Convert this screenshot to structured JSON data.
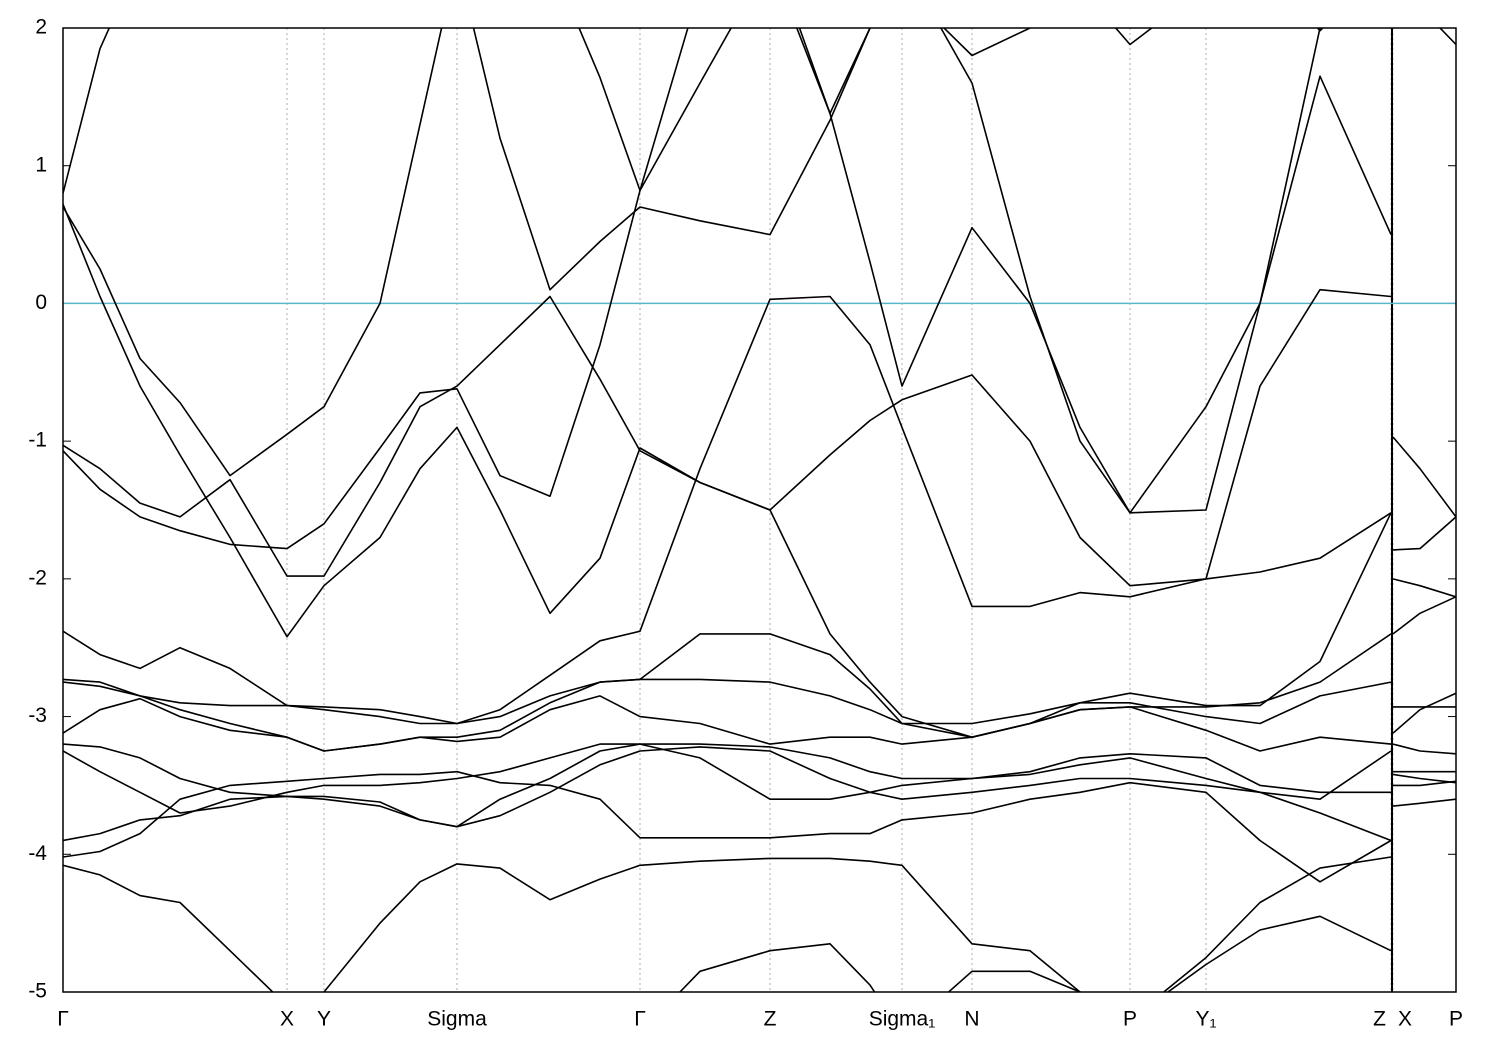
{
  "chart_data": {
    "type": "line",
    "x": [
      0,
      0.37,
      0.77,
      1.17,
      1.67,
      2.24,
      2.61,
      3.17,
      3.57,
      3.94,
      4.37,
      4.87,
      5.37,
      5.77,
      6.37,
      7.07,
      7.67,
      8.07,
      8.39,
      9.09,
      9.67,
      10.17,
      10.67,
      11.43,
      11.97,
      12.57,
      13.28,
      13.29,
      13.3,
      13.57,
      13.93
    ],
    "xlim": [
      0,
      13.93
    ],
    "ylim": [
      -5,
      2
    ],
    "yticks": [
      2,
      1,
      0,
      -1,
      -2,
      -3,
      -4,
      -5
    ],
    "xticks": [
      {
        "value": 0,
        "label": "Γ"
      },
      {
        "value": 2.24,
        "label": "X"
      },
      {
        "value": 2.61,
        "label": "Y"
      },
      {
        "value": 3.94,
        "label": "Sigma"
      },
      {
        "value": 5.77,
        "label": "Γ"
      },
      {
        "value": 7.07,
        "label": "Z"
      },
      {
        "value": 8.39,
        "label": "Sigma₁"
      },
      {
        "value": 9.09,
        "label": "N"
      },
      {
        "value": 10.67,
        "label": "P"
      },
      {
        "value": 11.43,
        "label": "Y₁"
      },
      {
        "value": 13.28,
        "label": "Z"
      },
      {
        "value": 13.3,
        "label": "X"
      },
      {
        "value": 13.93,
        "label": "P"
      }
    ],
    "grid": true,
    "reference_line": {
      "y": 0,
      "color": "#5bb6cc"
    },
    "series": [
      {
        "color": "#000000",
        "values": [
          0.8,
          1.85,
          2.5,
          2.5,
          2.5,
          2.5,
          2.5,
          2.5,
          2.5,
          2.5,
          2.5,
          2.5,
          1.64,
          0.82,
          1.6,
          2.5,
          1.38,
          2.0,
          2.5,
          1.6,
          0.05,
          -1.0,
          -1.52,
          -1.5,
          0.0,
          1.65,
          0.5,
          null,
          2.5,
          2.15,
          1.88
        ]
      },
      {
        "color": "#000000",
        "values": [
          0.72,
          0.05,
          -0.6,
          -1.1,
          -1.7,
          -2.42,
          -2.05,
          -1.7,
          -1.2,
          -0.9,
          -1.5,
          -2.25,
          -1.85,
          -1.05,
          -1.3,
          -1.5,
          -1.1,
          -0.85,
          -0.7,
          -0.52,
          -1.0,
          -1.7,
          -2.05,
          -2.0,
          -0.6,
          0.1,
          0.05,
          null,
          -3.12,
          -2.95,
          -2.83
        ]
      },
      {
        "color": "#000000",
        "values": [
          0.7,
          0.25,
          -0.4,
          -0.72,
          -1.25,
          -0.95,
          -0.75,
          0.0,
          1.3,
          2.5,
          1.2,
          0.1,
          0.45,
          0.7,
          0.6,
          0.5,
          1.33,
          2.0,
          2.3,
          1.8,
          2.0,
          2.3,
          1.88,
          2.3,
          2.5,
          1.98,
          2.5,
          null,
          -0.97,
          -1.2,
          -1.55
        ]
      },
      {
        "color": "#000000",
        "values": [
          -1.03,
          -1.2,
          -1.45,
          -1.55,
          -1.28,
          -1.98,
          -1.98,
          -1.3,
          -0.75,
          -0.6,
          -0.3,
          0.05,
          -0.55,
          -1.07,
          -1.3,
          -1.5,
          -2.4,
          -2.75,
          -3.0,
          -3.15,
          -3.05,
          -2.9,
          -2.83,
          -2.92,
          -2.92,
          -2.6,
          -1.52,
          null,
          -1.79,
          -1.78,
          -1.55
        ]
      },
      {
        "color": "#000000",
        "values": [
          -1.07,
          -1.35,
          -1.55,
          -1.65,
          -1.75,
          -1.78,
          -1.6,
          -1.05,
          -0.65,
          -0.62,
          -1.25,
          -1.4,
          -0.3,
          0.82,
          2.3,
          2.6,
          1.38,
          0.3,
          -0.6,
          0.55,
          0.0,
          -0.9,
          -1.52,
          -0.75,
          0.0,
          2.0,
          2.5,
          null,
          -2.0,
          -2.05,
          -2.13
        ]
      },
      {
        "color": "#000000",
        "values": [
          -2.38,
          -2.55,
          -2.65,
          -2.5,
          -2.65,
          -2.92,
          -2.95,
          -3.0,
          -3.05,
          -3.05,
          -2.95,
          -2.7,
          -2.45,
          -2.38,
          -1.2,
          0.03,
          0.05,
          -0.3,
          -0.9,
          -2.2,
          -2.2,
          -2.1,
          -2.13,
          -2.0,
          -1.95,
          -1.85,
          -1.52,
          null,
          -2.4,
          -2.25,
          -2.13
        ]
      },
      {
        "color": "#000000",
        "values": [
          -2.73,
          -2.75,
          -2.85,
          -2.95,
          -3.05,
          -3.15,
          -3.25,
          -3.2,
          -3.15,
          -3.15,
          -3.1,
          -2.9,
          -2.75,
          -2.73,
          -2.4,
          -2.4,
          -2.55,
          -2.8,
          -3.05,
          -3.15,
          -3.05,
          -2.95,
          -2.93,
          -2.93,
          -2.9,
          -2.75,
          -2.4,
          null,
          -2.93,
          -2.93,
          -2.93
        ]
      },
      {
        "color": "#000000",
        "values": [
          -2.75,
          -2.78,
          -2.85,
          -2.9,
          -2.92,
          -2.92,
          -2.93,
          -2.95,
          -3.0,
          -3.05,
          -3.0,
          -2.85,
          -2.75,
          -2.73,
          -2.73,
          -2.75,
          -2.85,
          -2.95,
          -3.05,
          -3.05,
          -2.98,
          -2.9,
          -2.9,
          -3.0,
          -3.05,
          -2.85,
          -2.75,
          null,
          -3.2,
          -3.25,
          -3.27
        ]
      },
      {
        "color": "#000000",
        "values": [
          -3.12,
          -2.95,
          -2.87,
          -3.0,
          -3.1,
          -3.15,
          -3.25,
          -3.2,
          -3.15,
          -3.18,
          -3.15,
          -2.95,
          -2.85,
          -3.0,
          -3.05,
          -3.2,
          -3.15,
          -3.15,
          -3.2,
          -3.15,
          -3.05,
          -2.95,
          -2.93,
          -3.1,
          -3.25,
          -3.15,
          -3.2,
          null,
          -3.4,
          -3.4,
          -3.4
        ]
      },
      {
        "color": "#000000",
        "values": [
          -3.2,
          -3.22,
          -3.3,
          -3.45,
          -3.55,
          -3.58,
          -3.6,
          -3.65,
          -3.75,
          -3.8,
          -3.6,
          -3.45,
          -3.25,
          -3.2,
          -3.3,
          -3.6,
          -3.6,
          -3.55,
          -3.5,
          -3.45,
          -3.4,
          -3.3,
          -3.27,
          -3.3,
          -3.5,
          -3.55,
          -3.55,
          null,
          -3.42,
          -3.45,
          -3.48
        ]
      },
      {
        "color": "#000000",
        "values": [
          -3.25,
          -3.4,
          -3.55,
          -3.7,
          -3.65,
          -3.55,
          -3.5,
          -3.5,
          -3.48,
          -3.45,
          -3.4,
          -3.3,
          -3.2,
          -3.2,
          -3.2,
          -3.22,
          -3.3,
          -3.4,
          -3.45,
          -3.45,
          -3.42,
          -3.35,
          -3.3,
          -3.45,
          -3.55,
          -3.6,
          -3.25,
          null,
          -3.5,
          -3.5,
          -3.47
        ]
      },
      {
        "color": "#000000",
        "values": [
          -3.9,
          -3.85,
          -3.75,
          -3.72,
          -3.6,
          -3.58,
          -3.58,
          -3.62,
          -3.75,
          -3.8,
          -3.72,
          -3.55,
          -3.35,
          -3.25,
          -3.22,
          -3.25,
          -3.45,
          -3.55,
          -3.6,
          -3.55,
          -3.5,
          -3.45,
          -3.45,
          -3.5,
          -3.55,
          -3.7,
          -3.9,
          null,
          -3.65,
          -3.63,
          -3.6
        ]
      },
      {
        "color": "#000000",
        "values": [
          -4.02,
          -3.98,
          -3.85,
          -3.6,
          -3.5,
          -3.47,
          -3.45,
          -3.42,
          -3.42,
          -3.4,
          -3.48,
          -3.5,
          -3.6,
          -3.88,
          -3.88,
          -3.88,
          -3.85,
          -3.85,
          -3.75,
          -3.7,
          -3.6,
          -3.55,
          -3.48,
          -3.55,
          -3.9,
          -4.2,
          -3.9,
          null,
          null,
          null,
          null
        ]
      },
      {
        "color": "#000000",
        "values": [
          -4.08,
          -4.15,
          -4.3,
          -4.35,
          -4.7,
          -5.1,
          -5.0,
          -4.5,
          -4.2,
          -4.07,
          -4.1,
          -4.33,
          -4.18,
          -4.08,
          -4.05,
          -4.03,
          -4.03,
          -4.05,
          -4.08,
          -4.65,
          -4.7,
          -5.0,
          -5.2,
          -4.75,
          -4.35,
          -4.1,
          -4.02,
          null,
          null,
          null,
          null
        ]
      },
      {
        "color": "#000000",
        "values": [
          null,
          null,
          null,
          null,
          null,
          null,
          null,
          null,
          null,
          null,
          null,
          null,
          null,
          -5.3,
          -4.85,
          -4.7,
          -4.65,
          -4.95,
          -5.3,
          -4.85,
          -4.85,
          -5.0,
          -5.2,
          -4.8,
          -4.55,
          -4.45,
          -4.7,
          null,
          null,
          null,
          null
        ]
      }
    ]
  }
}
